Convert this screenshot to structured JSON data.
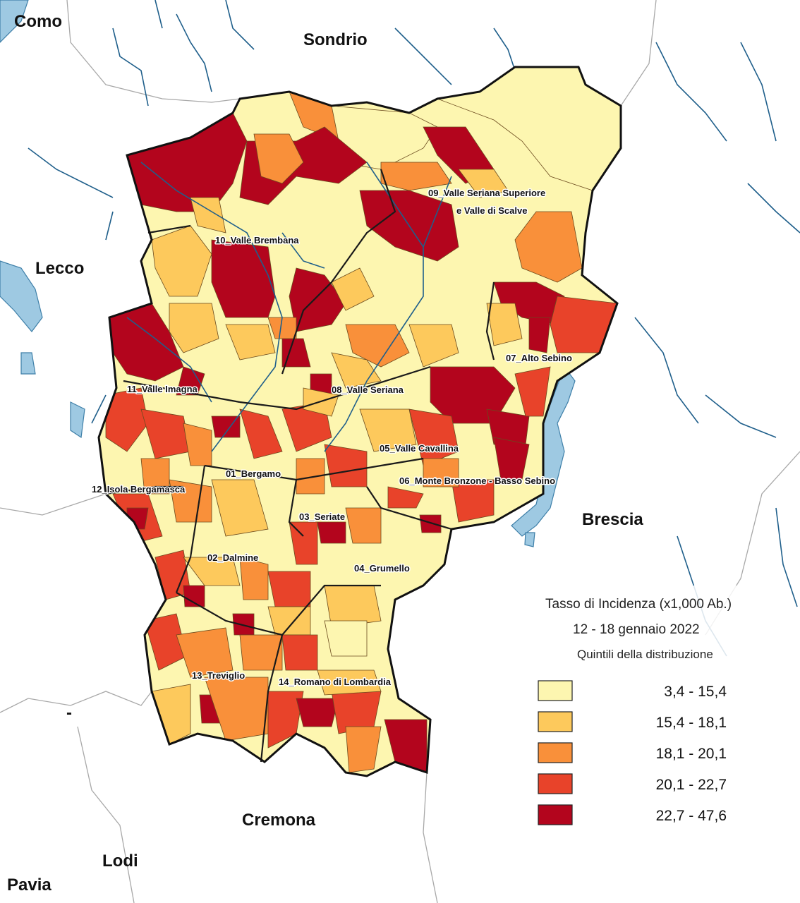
{
  "provinces": {
    "como": "Como",
    "sondrio": "Sondrio",
    "lecco": "Lecco",
    "brescia": "Brescia",
    "cremona": "Cremona",
    "lodi": "Lodi",
    "pavia": "Pavia",
    "milano_dash": "-"
  },
  "districts": {
    "d01": "01_Bergamo",
    "d02": "02_Dalmine",
    "d03": "03_Seriate",
    "d04": "04_Grumello",
    "d05": "05_Valle Cavallina",
    "d06": "06_Monte Bronzone - Basso Sebino",
    "d07": "07_Alto Sebino",
    "d08": "08_Valle Seriana",
    "d09_line1": "09_Valle Seriana Superiore",
    "d09_line2": "e Valle di Scalve",
    "d10": "10_Valle Brembana",
    "d11": "11_Valle Imagna",
    "d12": "12_Isola Bergamasca",
    "d13": "13_Treviglio",
    "d14": "14_Romano di Lombardia"
  },
  "legend": {
    "title": "Tasso di Incidenza (x1,000 Ab.)",
    "period": "12 - 18 gennaio 2022",
    "subtitle": "Quintili della distribuzione",
    "classes": [
      {
        "range": "3,4 - 15,4",
        "color": "#fdf6b0"
      },
      {
        "range": "15,4 - 18,1",
        "color": "#fdc95c"
      },
      {
        "range": "18,1 - 20,1",
        "color": "#f9903a"
      },
      {
        "range": "20,1 - 22,7",
        "color": "#e8432a"
      },
      {
        "range": "22,7 - 47,6",
        "color": "#b3051d"
      }
    ]
  },
  "colors": {
    "water": "#9ec9e2",
    "river": "#1f5f8b",
    "background": "#ffffff"
  }
}
